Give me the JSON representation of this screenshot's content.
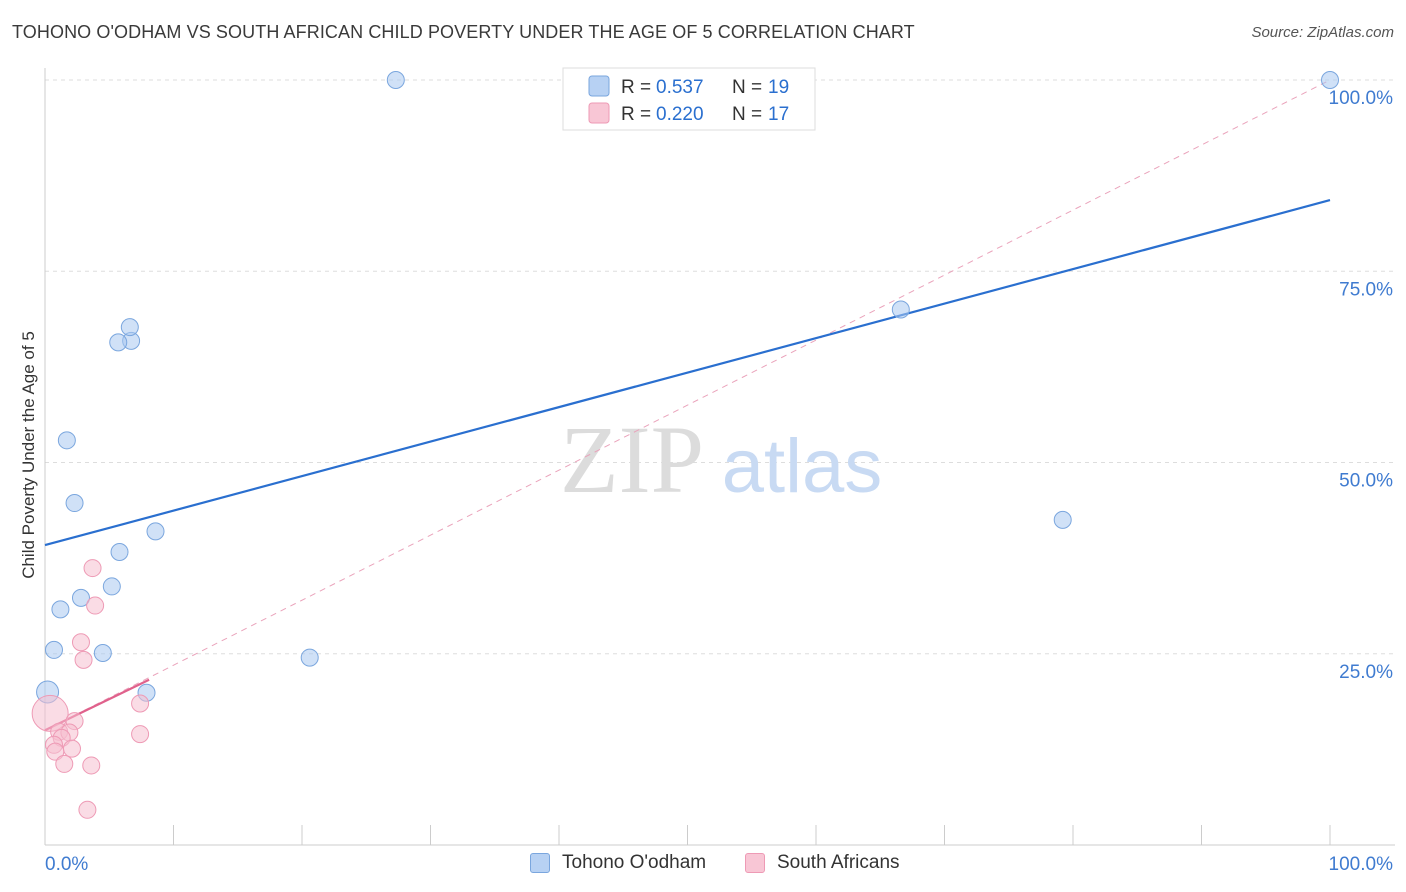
{
  "chart_data": {
    "type": "scatter",
    "title": "TOHONO O'ODHAM VS SOUTH AFRICAN CHILD POVERTY UNDER THE AGE OF 5 CORRELATION CHART",
    "source": "Source: ZipAtlas.com",
    "ylabel": "Child Poverty Under the Age of 5",
    "xlabel": "",
    "xlim": [
      0,
      100
    ],
    "ylim": [
      0,
      100
    ],
    "x_tick_labels": [
      "0.0%",
      "100.0%"
    ],
    "y_tick_labels": [
      {
        "value": 25,
        "label": "25.0%"
      },
      {
        "value": 50,
        "label": "50.0%"
      },
      {
        "value": 75,
        "label": "75.0%"
      },
      {
        "value": 100,
        "label": "100.0%"
      }
    ],
    "watermark": {
      "part1": "ZIP",
      "part2": "atlas"
    },
    "legend": {
      "r_label": "R =",
      "n_label": "N =",
      "entries": [
        {
          "r": "0.537",
          "n": "19"
        },
        {
          "r": "0.220",
          "n": "17"
        }
      ]
    },
    "series": [
      {
        "name": "Tohono O'odham",
        "color": "#a9c8f0",
        "stroke": "#7aa6de",
        "line_color": "#2a6fcf",
        "trend": {
          "x0": 0,
          "y0": 39.2,
          "x1": 100,
          "y1": 84.3
        },
        "points": [
          {
            "x": 27.3,
            "y": 100.0
          },
          {
            "x": 100.0,
            "y": 100.0
          },
          {
            "x": 66.6,
            "y": 70.0
          },
          {
            "x": 6.7,
            "y": 65.9
          },
          {
            "x": 5.7,
            "y": 65.7
          },
          {
            "x": 1.7,
            "y": 52.9
          },
          {
            "x": 2.3,
            "y": 44.7
          },
          {
            "x": 8.6,
            "y": 41.0
          },
          {
            "x": 5.8,
            "y": 38.3
          },
          {
            "x": 5.2,
            "y": 33.8
          },
          {
            "x": 2.8,
            "y": 32.3
          },
          {
            "x": 1.2,
            "y": 30.8
          },
          {
            "x": 0.7,
            "y": 25.5
          },
          {
            "x": 4.5,
            "y": 25.1
          },
          {
            "x": 20.6,
            "y": 24.5
          },
          {
            "x": 79.2,
            "y": 42.5
          },
          {
            "x": 7.9,
            "y": 19.9
          },
          {
            "x": 0.2,
            "y": 20.0
          },
          {
            "x": 6.6,
            "y": 67.7
          }
        ]
      },
      {
        "name": "South Africans",
        "color": "#f6bfd0",
        "stroke": "#ee9ab5",
        "line_color": "#e0618c",
        "trend": {
          "x0": 0,
          "y0": 15.0,
          "x1": 8.1,
          "y1": 21.6
        },
        "dashed_trend": {
          "x0": 0,
          "y0": 15.0,
          "x1": 100,
          "y1": 100.0
        },
        "points": [
          {
            "x": 3.7,
            "y": 36.2
          },
          {
            "x": 3.9,
            "y": 31.3
          },
          {
            "x": 2.8,
            "y": 26.5
          },
          {
            "x": 3.0,
            "y": 24.2
          },
          {
            "x": 7.4,
            "y": 18.5
          },
          {
            "x": 0.4,
            "y": 17.2
          },
          {
            "x": 2.3,
            "y": 16.2
          },
          {
            "x": 1.1,
            "y": 14.8
          },
          {
            "x": 1.9,
            "y": 14.7
          },
          {
            "x": 7.4,
            "y": 14.5
          },
          {
            "x": 1.3,
            "y": 14.0
          },
          {
            "x": 0.7,
            "y": 13.1
          },
          {
            "x": 2.1,
            "y": 12.6
          },
          {
            "x": 0.8,
            "y": 12.2
          },
          {
            "x": 1.5,
            "y": 10.6
          },
          {
            "x": 3.6,
            "y": 10.4
          },
          {
            "x": 3.3,
            "y": 4.6
          }
        ]
      }
    ]
  }
}
